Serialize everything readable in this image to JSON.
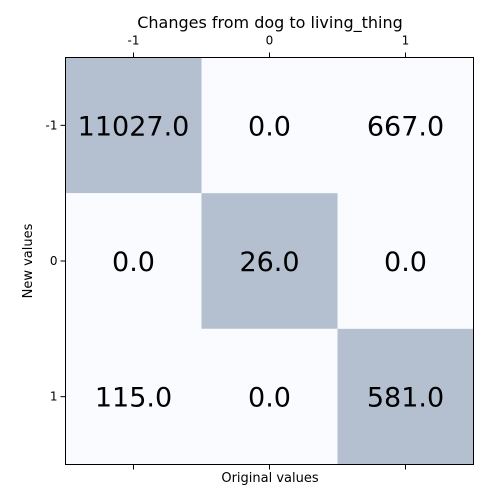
{
  "chart_data": {
    "type": "heatmap",
    "title": "Changes from dog to living_thing",
    "xlabel": "Original values",
    "ylabel": "New values",
    "x_ticks": [
      "-1",
      "0",
      "1"
    ],
    "y_ticks": [
      "-1",
      "0",
      "1"
    ],
    "x_tick_position": "top",
    "matrix": [
      [
        11027.0,
        0.0,
        667.0
      ],
      [
        0.0,
        26.0,
        0.0
      ],
      [
        115.0,
        0.0,
        581.0
      ]
    ],
    "cell_labels": [
      [
        "11027.0",
        "0.0",
        "667.0"
      ],
      [
        "0.0",
        "26.0",
        "0.0"
      ],
      [
        "115.0",
        "0.0",
        "581.0"
      ]
    ],
    "colors": {
      "highlight": "#b4bfd0",
      "background": "#f9fbfe"
    }
  }
}
